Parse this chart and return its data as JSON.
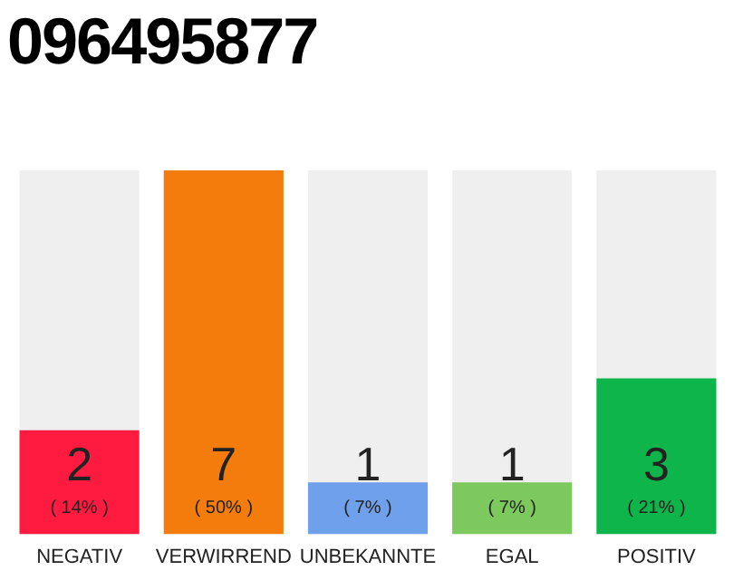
{
  "chart_data": {
    "type": "bar",
    "title": "096495877",
    "categories": [
      "NEGATIV",
      "VERWIRREND",
      "UNBEKANNTE",
      "EGAL",
      "POSITIV"
    ],
    "values": [
      2,
      7,
      1,
      1,
      3
    ],
    "colors": [
      "#ff1a40",
      "#f47c0c",
      "#6fa0eb",
      "#7dc95e",
      "#0db54a"
    ],
    "ylim": [
      0,
      7
    ],
    "tick_labels": "x",
    "grid": false,
    "legend": false,
    "data_labels": true,
    "annotations": [
      "( 14% )",
      "( 50% )",
      "( 7% )",
      "( 7% )",
      "( 21% )"
    ]
  }
}
